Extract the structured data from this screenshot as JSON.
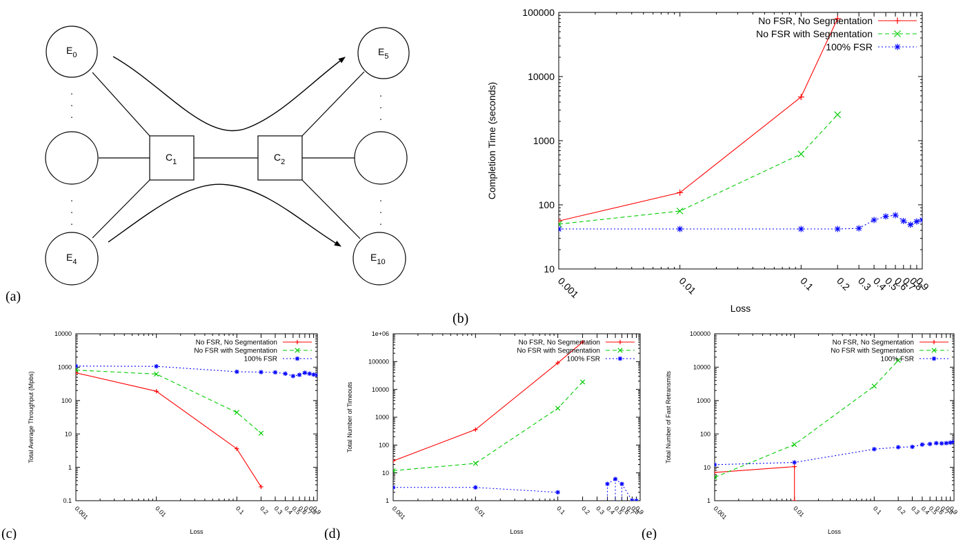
{
  "panel_labels": {
    "a": "(a)",
    "b": "(b)",
    "c": "(c)",
    "d": "(d)",
    "e": "(e)"
  },
  "diagram": {
    "nodes": {
      "e0": {
        "base": "E",
        "sub": "0"
      },
      "e4": {
        "base": "E",
        "sub": "4"
      },
      "e5": {
        "base": "E",
        "sub": "5"
      },
      "e10": {
        "base": "E",
        "sub": "10"
      },
      "c1": {
        "base": "C",
        "sub": "1"
      },
      "c2": {
        "base": "C",
        "sub": "2"
      }
    },
    "ellipsis": "."
  },
  "chart_data": [
    {
      "id": "b",
      "type": "line",
      "xscale": "log",
      "yscale": "log",
      "xlim": [
        0.001,
        1.0
      ],
      "ylim": [
        10,
        100000
      ],
      "xlabel": "Loss",
      "ylabel": "Completion Time (seconds)",
      "xticks": [
        "0.001",
        "0.01",
        "0.1",
        "0.2",
        "0.3",
        "0.4",
        "0.5",
        "0.6",
        "0.7",
        "0.8",
        "0.9"
      ],
      "yticks": [
        "10",
        "100",
        "1000",
        "10000",
        "100000"
      ],
      "legend": "top-right",
      "series": [
        {
          "name": "No FSR, No Segmentation",
          "color": "#ff0000",
          "dash": "",
          "marker": "plus",
          "x": [
            0.001,
            0.01,
            0.1,
            0.2
          ],
          "y": [
            56,
            155,
            4800,
            80000
          ]
        },
        {
          "name": "No FSR with Segmentation",
          "color": "#00cc00",
          "dash": "6,4",
          "marker": "x",
          "x": [
            0.001,
            0.01,
            0.1,
            0.2
          ],
          "y": [
            50,
            80,
            620,
            2550
          ]
        },
        {
          "name": "100% FSR",
          "color": "#0000ff",
          "dash": "2,3",
          "marker": "star",
          "x": [
            0.001,
            0.01,
            0.1,
            0.2,
            0.3,
            0.4,
            0.5,
            0.6,
            0.7,
            0.8,
            0.9,
            1.0
          ],
          "y": [
            42,
            42,
            42,
            42,
            43,
            58,
            66,
            69,
            56,
            49,
            55,
            58
          ]
        }
      ]
    },
    {
      "id": "c",
      "type": "line",
      "xscale": "log",
      "yscale": "log",
      "xlim": [
        0.001,
        1.0
      ],
      "ylim": [
        0.1,
        10000
      ],
      "xlabel": "Loss",
      "ylabel": "Total Average Throughput (Mpbs)",
      "xticks": [
        "0.001",
        "0.01",
        "0.1",
        "0.2",
        "0.3",
        "0.4",
        "0.5",
        "0.6",
        "0.7",
        "0.8",
        "0.9"
      ],
      "yticks": [
        "0.1",
        "1",
        "10",
        "100",
        "1000",
        "10000"
      ],
      "legend": "top-right",
      "series": [
        {
          "name": "No FSR, No Segmentation",
          "color": "#ff0000",
          "dash": "",
          "marker": "plus",
          "x": [
            0.001,
            0.01,
            0.1,
            0.2
          ],
          "y": [
            680,
            190,
            3.6,
            0.26
          ]
        },
        {
          "name": "No FSR with Segmentation",
          "color": "#00cc00",
          "dash": "6,4",
          "marker": "x",
          "x": [
            0.001,
            0.01,
            0.1,
            0.2
          ],
          "y": [
            820,
            620,
            44,
            10.5
          ]
        },
        {
          "name": "100% FSR",
          "color": "#0000ff",
          "dash": "2,3",
          "marker": "star",
          "x": [
            0.001,
            0.01,
            0.1,
            0.2,
            0.3,
            0.4,
            0.5,
            0.6,
            0.7,
            0.8,
            0.9,
            1.0
          ],
          "y": [
            1080,
            1060,
            730,
            710,
            700,
            640,
            540,
            590,
            680,
            640,
            600,
            580
          ]
        }
      ]
    },
    {
      "id": "d",
      "type": "line",
      "xscale": "log",
      "yscale": "log",
      "xlim": [
        0.001,
        1.0
      ],
      "ylim": [
        1,
        1000000
      ],
      "xlabel": "Loss",
      "ylabel": "Total Number of Timeouts",
      "xticks": [
        "0.001",
        "0.01",
        "0.1",
        "0.2",
        "0.3",
        "0.4",
        "0.5",
        "0.6",
        "0.7",
        "0.8",
        "0.9"
      ],
      "yticks": [
        "1",
        "10",
        "100",
        "1000",
        "10000",
        "100000",
        "1e+06"
      ],
      "legend": "top-right",
      "series": [
        {
          "name": "No FSR, No Segmentation",
          "color": "#ff0000",
          "dash": "",
          "marker": "plus",
          "x": [
            0.001,
            0.01,
            0.1,
            0.2
          ],
          "y": [
            27,
            360,
            90000,
            500000
          ]
        },
        {
          "name": "No FSR with Segmentation",
          "color": "#00cc00",
          "dash": "6,4",
          "marker": "x",
          "x": [
            0.001,
            0.01,
            0.1,
            0.2
          ],
          "y": [
            12,
            22,
            2100,
            18500
          ]
        },
        {
          "name": "100% FSR",
          "color": "#0000ff",
          "dash": "2,3",
          "marker": "star",
          "x": [
            0.001,
            0.01,
            0.1,
            0.4,
            0.5,
            0.6,
            0.8,
            0.9
          ],
          "y": [
            3,
            3,
            2,
            4,
            6,
            4,
            1,
            1
          ],
          "drop_to_floor": true
        }
      ]
    },
    {
      "id": "e",
      "type": "line",
      "xscale": "log",
      "yscale": "log",
      "xlim": [
        0.001,
        1.0
      ],
      "ylim": [
        1,
        100000
      ],
      "xlabel": "Loss",
      "ylabel": "Total Number of Fast Retransmits",
      "xticks": [
        "0.001",
        "0.01",
        "0.1",
        "0.2",
        "0.3",
        "0.4",
        "0.5",
        "0.6",
        "0.7",
        "0.8",
        "0.9"
      ],
      "yticks": [
        "1",
        "10",
        "100",
        "1000",
        "10000",
        "100000"
      ],
      "legend": "top-right",
      "series": [
        {
          "name": "No FSR, No Segmentation",
          "color": "#ff0000",
          "dash": "",
          "marker": "plus",
          "x": [
            0.001,
            0.01,
            0.01
          ],
          "y": [
            7,
            10.5,
            1
          ]
        },
        {
          "name": "No FSR with Segmentation",
          "color": "#00cc00",
          "dash": "6,4",
          "marker": "x",
          "x": [
            0.001,
            0.01,
            0.1,
            0.2
          ],
          "y": [
            5,
            48,
            2700,
            16000
          ]
        },
        {
          "name": "100% FSR",
          "color": "#0000ff",
          "dash": "2,3",
          "marker": "star",
          "x": [
            0.001,
            0.01,
            0.1,
            0.2,
            0.3,
            0.4,
            0.5,
            0.6,
            0.7,
            0.8,
            0.9,
            1.0
          ],
          "y": [
            12,
            14,
            35,
            40,
            41,
            48,
            50,
            53,
            52,
            53,
            55,
            58
          ]
        }
      ]
    }
  ]
}
